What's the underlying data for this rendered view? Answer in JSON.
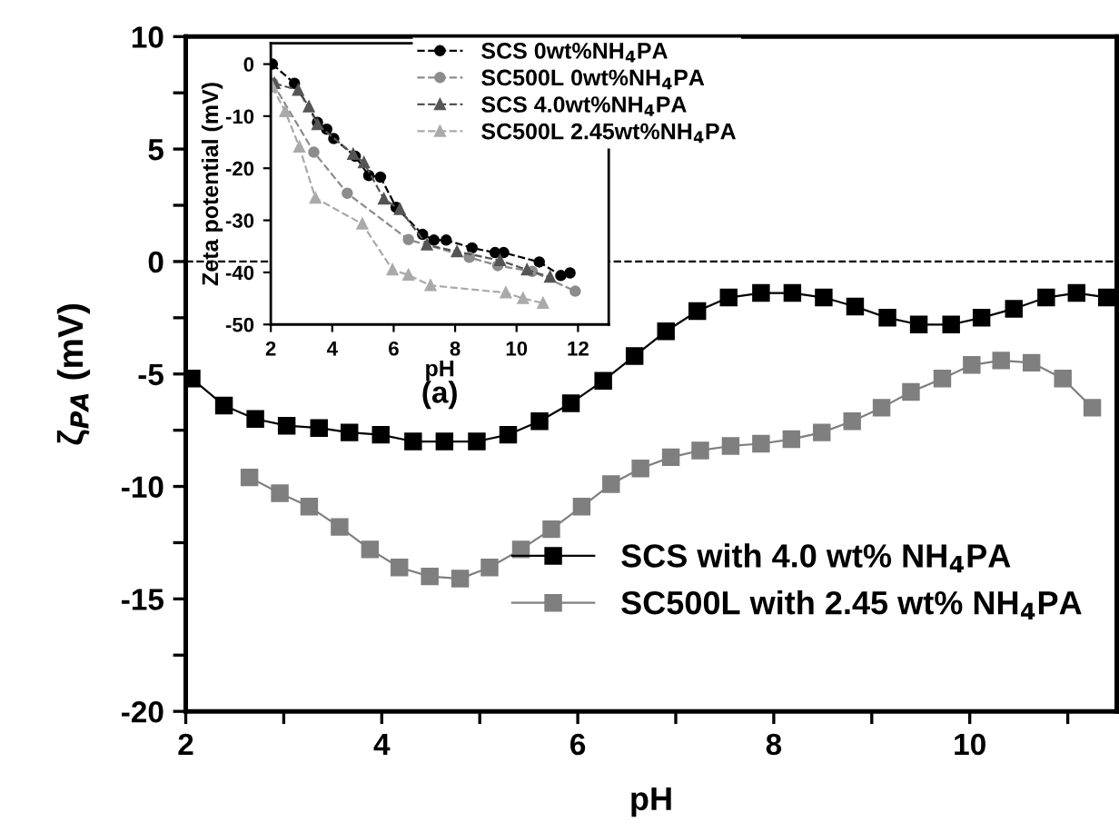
{
  "chart_data": [
    {
      "type": "line",
      "xlabel": "pH",
      "ylabel": "ζ$_{PA}$ (mV)",
      "xlim": [
        2,
        11.5
      ],
      "ylim": [
        -20,
        10
      ],
      "xticks": [
        2,
        {
          "value": 3,
          "label": null
        },
        4,
        {
          "value": 5,
          "label": null
        },
        6,
        {
          "value": 7,
          "label": null
        },
        8,
        {
          "value": 9,
          "label": null
        },
        10,
        {
          "value": 11,
          "label": null
        }
      ],
      "yticks": [
        -20,
        {
          "value": -17.5,
          "label": null
        },
        -15,
        {
          "value": -12.5,
          "label": null
        },
        -10,
        {
          "value": -7.5,
          "label": null
        },
        -5,
        {
          "value": -2.5,
          "label": null
        },
        0,
        {
          "value": 2.5,
          "label": null
        },
        5,
        {
          "value": 7.5,
          "label": null
        },
        10
      ],
      "grid": false,
      "legend": "bottom right",
      "marker": "square",
      "line_style": "solid",
      "ref_lines": [
        {
          "axis": "y",
          "value": 0,
          "label": null,
          "color": "#000000",
          "line_style": "dashed"
        }
      ],
      "series": [
        {
          "name": "SCS with 4.0 wt% NH$_{4}$PA",
          "color": "#000000",
          "x": [
            2.06,
            2.39,
            2.71,
            3.03,
            3.36,
            3.67,
            3.99,
            4.32,
            4.64,
            4.97,
            5.29,
            5.61,
            5.93,
            6.26,
            6.58,
            6.9,
            7.22,
            7.54,
            7.87,
            8.19,
            8.51,
            8.83,
            9.16,
            9.48,
            9.81,
            10.12,
            10.45,
            10.78,
            11.09,
            11.4
          ],
          "values": [
            -5.2,
            -6.4,
            -7.0,
            -7.3,
            -7.4,
            -7.6,
            -7.7,
            -8.0,
            -8.0,
            -8.0,
            -7.7,
            -7.1,
            -6.3,
            -5.3,
            -4.2,
            -3.1,
            -2.2,
            -1.6,
            -1.4,
            -1.4,
            -1.6,
            -2.0,
            -2.5,
            -2.8,
            -2.8,
            -2.5,
            -2.1,
            -1.6,
            -1.4,
            -1.6
          ]
        },
        {
          "name": "SC500L with 2.45 wt% NH$_{4}$PA",
          "color": "#7f7f7f",
          "x": [
            2.65,
            2.96,
            3.26,
            3.57,
            3.88,
            4.18,
            4.49,
            4.8,
            5.1,
            5.42,
            5.73,
            6.04,
            6.34,
            6.64,
            6.95,
            7.25,
            7.56,
            7.87,
            8.18,
            8.49,
            8.8,
            9.1,
            9.4,
            9.72,
            10.02,
            10.32,
            10.63,
            10.95,
            11.25
          ],
          "values": [
            -9.6,
            -10.3,
            -10.9,
            -11.8,
            -12.8,
            -13.6,
            -14.0,
            -14.1,
            -13.6,
            -12.8,
            -11.9,
            -10.9,
            -9.9,
            -9.2,
            -8.7,
            -8.4,
            -8.2,
            -8.1,
            -7.9,
            -7.6,
            -7.1,
            -6.5,
            -5.8,
            -5.2,
            -4.6,
            -4.4,
            -4.5,
            -5.2,
            -6.5
          ]
        }
      ]
    },
    {
      "type": "line",
      "xlabel": "pH",
      "ylabel": "Zeta potential (mV)",
      "xlim": [
        2,
        13
      ],
      "ylim": [
        -50,
        4
      ],
      "xticks": [
        2,
        4,
        6,
        8,
        10,
        12
      ],
      "yticks": [
        -50,
        -40,
        -30,
        -20,
        -10,
        0
      ],
      "grid": false,
      "legend": "top right",
      "line_style": "dashed",
      "annotations": [
        {
          "text": "(a)"
        }
      ],
      "series": [
        {
          "name": "SCS 0wt%NH$_{4}$PA",
          "color": "#000000",
          "marker": "circle",
          "x": [
            2.05,
            2.77,
            3.52,
            3.82,
            4.05,
            4.75,
            5.19,
            5.57,
            6.08,
            6.94,
            7.31,
            7.71,
            8.55,
            9.3,
            9.58,
            10.74,
            11.44,
            11.74
          ],
          "values": [
            0,
            -3.7,
            -11.2,
            -12.5,
            -14.3,
            -17.7,
            -21.4,
            -21.7,
            -27.5,
            -32.7,
            -33.8,
            -33.8,
            -35.3,
            -36.2,
            -36.2,
            -38.0,
            -40.6,
            -40.1
          ]
        },
        {
          "name": "SC500L 0wt%NH$_{4}$PA",
          "color": "#8c8c8c",
          "marker": "circle",
          "x": [
            2.07,
            3.4,
            4.49,
            6.48,
            8.46,
            9.39,
            10.51,
            11.91
          ],
          "values": [
            -3.7,
            -16.9,
            -24.8,
            -33.7,
            -37.1,
            -38.7,
            -39.8,
            -43.6
          ]
        },
        {
          "name": "SCS 4.0wt%NH$_{4}$PA",
          "color": "#555555",
          "marker": "triangle",
          "x": [
            2.12,
            2.89,
            3.24,
            3.52,
            4.68,
            5.03,
            5.68,
            6.2,
            7.08,
            8.06,
            9.46,
            10.34,
            11.09
          ],
          "values": [
            -3.7,
            -5.0,
            -8.2,
            -11.6,
            -17.3,
            -18.9,
            -25.9,
            -27.9,
            -34.7,
            -36.0,
            -37.7,
            -39.5,
            -40.9
          ]
        },
        {
          "name": "SC500L 2.45wt%NH$_{4}$PA",
          "color": "#aaaaaa",
          "marker": "triangle",
          "x": [
            2.05,
            2.47,
            2.93,
            3.45,
            4.98,
            5.96,
            6.48,
            7.2,
            9.65,
            10.21,
            10.86
          ],
          "values": [
            -4.4,
            -9.1,
            -15.9,
            -25.7,
            -30.7,
            -39.5,
            -40.5,
            -42.5,
            -43.9,
            -45.0,
            -45.9
          ]
        }
      ]
    }
  ]
}
